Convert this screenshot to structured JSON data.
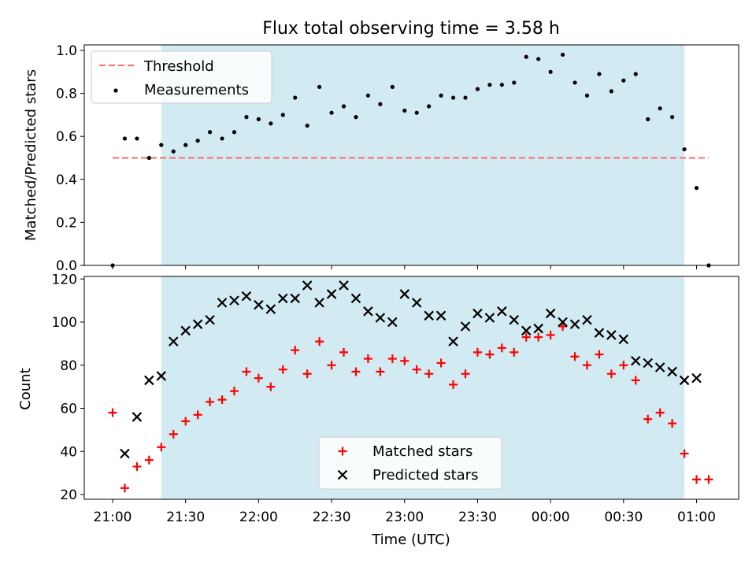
{
  "chart_data": [
    {
      "type": "scatter",
      "title": "Flux total observing time = 3.58 h",
      "xlabel": "",
      "ylabel": "Matched/Predicted stars",
      "ylim": [
        0,
        1.0
      ],
      "yticks": [
        "0.0",
        "0.2",
        "0.4",
        "0.6",
        "0.8",
        "1.0"
      ],
      "legend_position": "upper-left",
      "shaded_interval": {
        "start": "21:20",
        "end": "00:55",
        "color": "#add8e6"
      },
      "threshold": {
        "name": "Threshold",
        "value": 0.5,
        "x_start": "21:00",
        "x_end": "01:05",
        "color": "#ff6b6b"
      },
      "series": [
        {
          "name": "Measurements",
          "color": "#000000",
          "x": [
            "21:00",
            "21:05",
            "21:10",
            "21:15",
            "21:20",
            "21:25",
            "21:30",
            "21:35",
            "21:40",
            "21:45",
            "21:50",
            "21:55",
            "22:00",
            "22:05",
            "22:10",
            "22:15",
            "22:20",
            "22:25",
            "22:30",
            "22:35",
            "22:40",
            "22:45",
            "22:50",
            "22:55",
            "23:00",
            "23:05",
            "23:10",
            "23:15",
            "23:20",
            "23:25",
            "23:30",
            "23:35",
            "23:40",
            "23:45",
            "23:50",
            "23:55",
            "00:00",
            "00:05",
            "00:10",
            "00:15",
            "00:20",
            "00:25",
            "00:30",
            "00:35",
            "00:40",
            "00:45",
            "00:50",
            "00:55",
            "01:00",
            "01:05"
          ],
          "y": [
            0.0,
            0.59,
            0.59,
            0.5,
            0.56,
            0.53,
            0.56,
            0.58,
            0.62,
            0.59,
            0.62,
            0.69,
            0.68,
            0.66,
            0.7,
            0.78,
            0.65,
            0.83,
            0.71,
            0.74,
            0.69,
            0.79,
            0.75,
            0.83,
            0.72,
            0.71,
            0.74,
            0.79,
            0.78,
            0.78,
            0.82,
            0.84,
            0.84,
            0.85,
            0.97,
            0.96,
            0.9,
            0.98,
            0.85,
            0.79,
            0.89,
            0.81,
            0.86,
            0.89,
            0.68,
            0.73,
            0.69,
            0.54,
            0.36,
            0.0
          ]
        }
      ]
    },
    {
      "type": "scatter",
      "title": "",
      "xlabel": "Time (UTC)",
      "ylabel": "Count",
      "ylim": [
        19,
        122
      ],
      "yticks": [
        "20",
        "40",
        "60",
        "80",
        "100",
        "120"
      ],
      "xticks": [
        "21:00",
        "21:30",
        "22:00",
        "22:30",
        "23:00",
        "23:30",
        "00:00",
        "00:30",
        "01:00"
      ],
      "legend_position": "lower-center",
      "shaded_interval": {
        "start": "21:20",
        "end": "00:55",
        "color": "#add8e6"
      },
      "series": [
        {
          "name": "Matched stars",
          "color": "#ff0000",
          "marker": "+",
          "x": [
            "21:00",
            "21:05",
            "21:10",
            "21:15",
            "21:20",
            "21:25",
            "21:30",
            "21:35",
            "21:40",
            "21:45",
            "21:50",
            "21:55",
            "22:00",
            "22:05",
            "22:10",
            "22:15",
            "22:20",
            "22:25",
            "22:30",
            "22:35",
            "22:40",
            "22:45",
            "22:50",
            "22:55",
            "23:00",
            "23:05",
            "23:10",
            "23:15",
            "23:20",
            "23:25",
            "23:30",
            "23:35",
            "23:40",
            "23:45",
            "23:50",
            "23:55",
            "00:00",
            "00:05",
            "00:10",
            "00:15",
            "00:20",
            "00:25",
            "00:30",
            "00:35",
            "00:40",
            "00:45",
            "00:50",
            "00:55",
            "01:00",
            "01:05"
          ],
          "y": [
            58,
            23,
            33,
            36,
            42,
            48,
            54,
            57,
            63,
            64,
            68,
            77,
            74,
            70,
            78,
            87,
            76,
            91,
            80,
            86,
            77,
            83,
            77,
            83,
            82,
            78,
            76,
            81,
            71,
            76,
            86,
            85,
            88,
            86,
            93,
            93,
            94,
            98,
            84,
            80,
            85,
            76,
            80,
            73,
            55,
            58,
            53,
            39,
            27,
            27
          ]
        },
        {
          "name": "Predicted stars",
          "color": "#000000",
          "marker": "x",
          "x": [
            "21:05",
            "21:10",
            "21:15",
            "21:20",
            "21:25",
            "21:30",
            "21:35",
            "21:40",
            "21:45",
            "21:50",
            "21:55",
            "22:00",
            "22:05",
            "22:10",
            "22:15",
            "22:20",
            "22:25",
            "22:30",
            "22:35",
            "22:40",
            "22:45",
            "22:50",
            "22:55",
            "23:00",
            "23:05",
            "23:10",
            "23:15",
            "23:20",
            "23:25",
            "23:30",
            "23:35",
            "23:40",
            "23:45",
            "23:50",
            "23:55",
            "00:00",
            "00:05",
            "00:10",
            "00:15",
            "00:20",
            "00:25",
            "00:30",
            "00:35",
            "00:40",
            "00:45",
            "00:50",
            "00:55",
            "01:00"
          ],
          "y": [
            39,
            56,
            73,
            75,
            91,
            96,
            99,
            101,
            109,
            110,
            112,
            108,
            106,
            111,
            111,
            117,
            109,
            113,
            117,
            111,
            105,
            102,
            100,
            113,
            109,
            103,
            103,
            91,
            98,
            104,
            102,
            105,
            101,
            96,
            97,
            104,
            100,
            99,
            101,
            95,
            94,
            92,
            82,
            81,
            79,
            77,
            73,
            74
          ]
        }
      ]
    }
  ]
}
